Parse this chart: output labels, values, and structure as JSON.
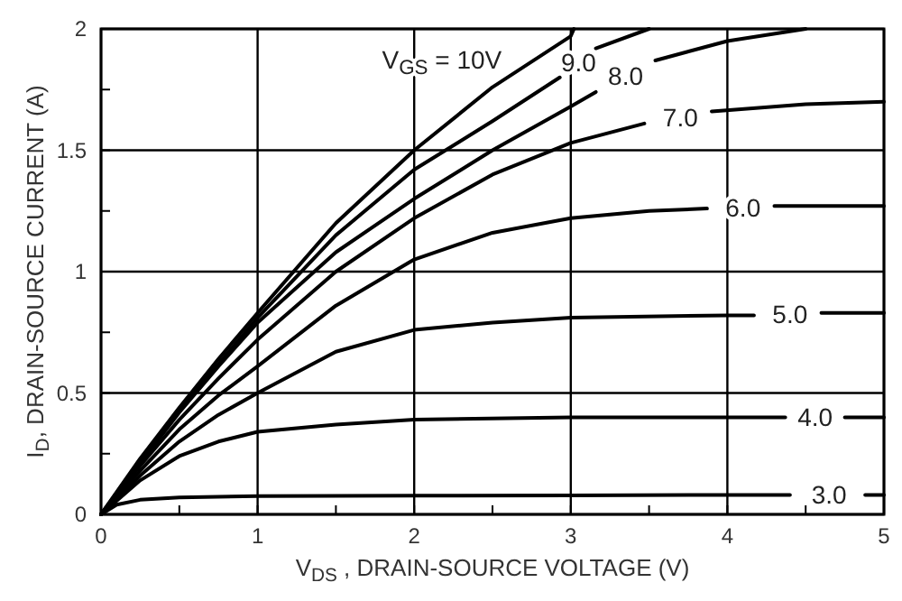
{
  "chart_data": {
    "type": "line",
    "xlabel": "V$_{DS}$ , DRAIN-SOURCE VOLTAGE (V)",
    "ylabel": "I$_{D}$, DRAIN-SOURCE CURRENT (A)",
    "xlim": [
      0,
      5
    ],
    "ylim": [
      0,
      2
    ],
    "xticks": [
      0,
      {
        "value": 0.5,
        "label": null
      },
      1,
      {
        "value": 1.5,
        "label": null
      },
      2,
      {
        "value": 2.5,
        "label": null
      },
      3,
      {
        "value": 3.5,
        "label": null
      },
      4,
      {
        "value": 4.5,
        "label": null
      },
      5
    ],
    "yticks": [
      0,
      {
        "value": 0.25,
        "label": null
      },
      0.5,
      {
        "value": 0.75,
        "label": null
      },
      1,
      {
        "value": 1.25,
        "label": null
      },
      1.5,
      {
        "value": 1.75,
        "label": null
      },
      2
    ],
    "grid": true,
    "marker": "none",
    "line_style": "solid",
    "series": [
      {
        "name": "3.0",
        "color": "#000000",
        "x": [
          0,
          0.1,
          0.25,
          0.5,
          1,
          2,
          3,
          4,
          4.4,
          4.65,
          4.88,
          5
        ],
        "values": [
          0,
          0.04,
          0.06,
          0.07,
          0.075,
          0.077,
          0.078,
          0.08,
          0.08,
          null,
          0.08,
          0.08
        ]
      },
      {
        "name": "4.0",
        "color": "#000000",
        "x": [
          0,
          0.25,
          0.5,
          0.75,
          1,
          1.5,
          2,
          3,
          4,
          4.37,
          4.56,
          4.75,
          5
        ],
        "values": [
          0,
          0.14,
          0.24,
          0.3,
          0.34,
          0.37,
          0.39,
          0.4,
          0.4,
          0.4,
          null,
          0.4,
          0.4
        ]
      },
      {
        "name": "5.0",
        "color": "#000000",
        "x": [
          0,
          0.25,
          0.5,
          0.75,
          1,
          1.5,
          2,
          2.5,
          3,
          4,
          4.17,
          4.4,
          4.6,
          5
        ],
        "values": [
          0,
          0.16,
          0.3,
          0.41,
          0.5,
          0.67,
          0.76,
          0.79,
          0.81,
          0.82,
          0.82,
          null,
          0.83,
          0.83
        ]
      },
      {
        "name": "6.0",
        "color": "#000000",
        "x": [
          0,
          0.25,
          0.5,
          0.75,
          1,
          1.5,
          2,
          2.5,
          3,
          3.5,
          3.87,
          4.1,
          4.3,
          5
        ],
        "values": [
          0,
          0.18,
          0.35,
          0.49,
          0.61,
          0.86,
          1.05,
          1.16,
          1.22,
          1.25,
          1.26,
          null,
          1.27,
          1.27
        ]
      },
      {
        "name": "7.0",
        "color": "#000000",
        "x": [
          0,
          0.25,
          0.5,
          0.75,
          1,
          1.5,
          2,
          2.5,
          3,
          3.47,
          3.7,
          3.9,
          4.5,
          5
        ],
        "values": [
          0,
          0.2,
          0.39,
          0.56,
          0.72,
          1.0,
          1.22,
          1.4,
          1.53,
          1.61,
          null,
          1.66,
          1.69,
          1.7
        ]
      },
      {
        "name": "8.0",
        "color": "#000000",
        "x": [
          0,
          0.25,
          0.5,
          0.75,
          1,
          1.5,
          2,
          2.5,
          3,
          3.16,
          3.35,
          3.54,
          4,
          4.5
        ],
        "values": [
          0,
          0.21,
          0.42,
          0.61,
          0.79,
          1.08,
          1.3,
          1.5,
          1.68,
          1.74,
          null,
          1.87,
          1.95,
          2.0
        ]
      },
      {
        "name": "9.0",
        "color": "#000000",
        "x": [
          0,
          0.25,
          0.5,
          0.75,
          1,
          1.5,
          2,
          2.5,
          2.93,
          3.05,
          3.16,
          3.5
        ],
        "values": [
          0,
          0.22,
          0.43,
          0.62,
          0.81,
          1.15,
          1.42,
          1.62,
          1.8,
          null,
          1.92,
          2.0
        ]
      },
      {
        "name": "V$_{GS}$ = 10V",
        "color": "#000000",
        "x": [
          0,
          0.25,
          0.5,
          0.75,
          1,
          1.5,
          2,
          2.5,
          3,
          3.02
        ],
        "values": [
          0,
          0.23,
          0.44,
          0.64,
          0.83,
          1.2,
          1.5,
          1.76,
          1.97,
          2.0
        ]
      }
    ]
  }
}
